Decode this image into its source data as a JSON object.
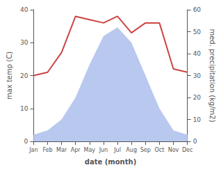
{
  "chart_data": {
    "type": "line",
    "categories": [
      "Jan",
      "Feb",
      "Mar",
      "Apr",
      "May",
      "Jun",
      "Jul",
      "Aug",
      "Sep",
      "Oct",
      "Nov",
      "Dec"
    ],
    "series": [
      {
        "type": "area",
        "color": "#b8c8ee",
        "axis": "y2",
        "values": [
          3,
          5,
          10,
          20,
          35,
          48,
          52,
          45,
          30,
          15,
          5,
          3
        ]
      },
      {
        "type": "line",
        "color": "#cc4444",
        "values": [
          20,
          21,
          27,
          38,
          37,
          36,
          38,
          33,
          36,
          36,
          22,
          21
        ]
      }
    ],
    "xlabel": "date (month)",
    "ylabel": "max temp (C)",
    "y2label": "med. precipitation (kg/m2)",
    "ylim": [
      0,
      40
    ],
    "yticks": [
      0,
      10,
      20,
      30,
      40
    ],
    "y2lim": [
      0,
      60
    ],
    "y2ticks": [
      0,
      10,
      20,
      30,
      40,
      50,
      60
    ],
    "grid": false
  }
}
